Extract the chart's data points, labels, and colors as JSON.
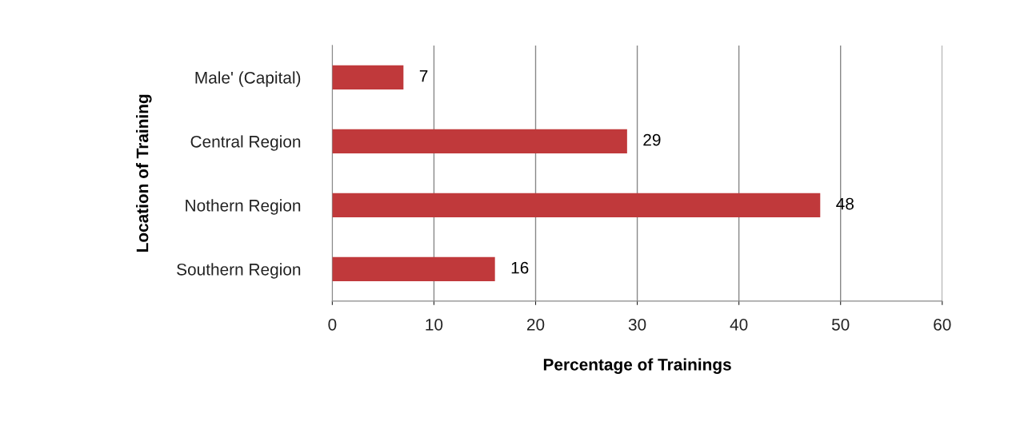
{
  "chart_data": {
    "type": "bar",
    "orientation": "horizontal",
    "xlabel": "Percentage of Trainings",
    "ylabel": "Location of Training",
    "categories": [
      "Male' (Capital)",
      "Central Region",
      "Nothern Region",
      "Southern Region"
    ],
    "values": [
      7,
      29,
      48,
      16
    ],
    "color": "#c0393b",
    "data_labels": true,
    "xlim": [
      0,
      60
    ],
    "xticks": [
      0,
      10,
      20,
      30,
      40,
      50,
      60
    ],
    "grid": "x"
  }
}
